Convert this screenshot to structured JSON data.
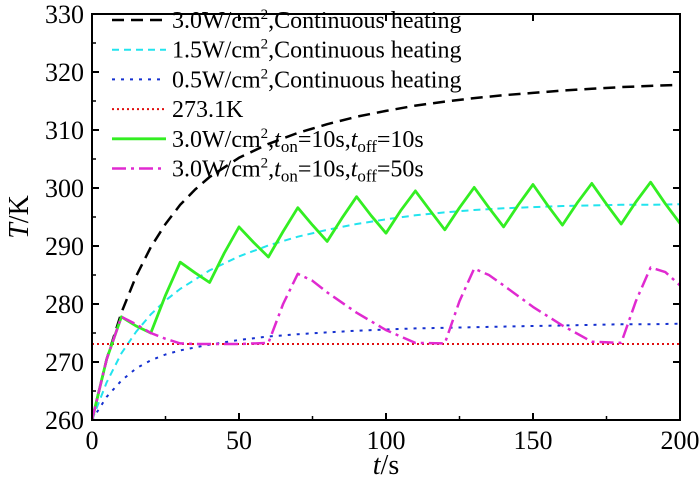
{
  "chart_data": {
    "type": "line",
    "title": "",
    "xlabel": {
      "var": "t",
      "unit": "/s"
    },
    "ylabel": {
      "var": "T",
      "unit": "/K"
    },
    "xlim": [
      0,
      200
    ],
    "ylim": [
      260,
      330
    ],
    "xticks": [
      0,
      50,
      100,
      150,
      200
    ],
    "yticks": [
      260,
      270,
      280,
      290,
      300,
      310,
      320,
      330
    ],
    "legend_position": "top-left",
    "series": [
      {
        "name": "3.0W/cm²,Continuous heating",
        "legend": {
          "parts": [
            {
              "t": "3.0W/cm"
            },
            {
              "t": "2",
              "s": "sup"
            },
            {
              "t": ",Continuous heating"
            }
          ]
        },
        "color": "#000000",
        "dash": "12,7",
        "width": 2.5,
        "x": [
          0,
          5,
          10,
          15,
          20,
          25,
          30,
          35,
          40,
          50,
          60,
          70,
          80,
          90,
          100,
          110,
          120,
          130,
          140,
          150,
          160,
          170,
          180,
          190,
          200
        ],
        "y": [
          260,
          270.5,
          278.5,
          284.8,
          289.8,
          293.8,
          297.1,
          299.7,
          301.9,
          305.2,
          307.6,
          309.5,
          311,
          312.3,
          313.3,
          314.2,
          314.9,
          315.5,
          316,
          316.4,
          316.8,
          317.1,
          317.4,
          317.6,
          317.8
        ]
      },
      {
        "name": "1.5W/cm²,Continuous heating",
        "legend": {
          "parts": [
            {
              "t": "1.5W/cm"
            },
            {
              "t": "2",
              "s": "sup"
            },
            {
              "t": ",Continuous heating"
            }
          ]
        },
        "color": "#22e4ee",
        "dash": "7,5",
        "width": 2,
        "x": [
          0,
          5,
          10,
          15,
          20,
          25,
          30,
          40,
          50,
          60,
          70,
          80,
          90,
          100,
          110,
          120,
          130,
          140,
          150,
          160,
          170,
          180,
          190,
          200
        ],
        "y": [
          260,
          266.5,
          271.5,
          275.2,
          278.2,
          280.6,
          282.6,
          285.8,
          288.2,
          290.1,
          291.6,
          292.8,
          293.8,
          294.6,
          295.3,
          295.8,
          296.2,
          296.5,
          296.7,
          296.9,
          297,
          297.1,
          297.1,
          297.2
        ]
      },
      {
        "name": "0.5W/cm²,Continuous heating",
        "legend": {
          "parts": [
            {
              "t": "0.5W/cm"
            },
            {
              "t": "2",
              "s": "sup"
            },
            {
              "t": ",Continuous heating"
            }
          ]
        },
        "color": "#1530d0",
        "dash": "3,6",
        "width": 2,
        "x": [
          0,
          5,
          10,
          15,
          20,
          25,
          30,
          40,
          50,
          60,
          70,
          80,
          90,
          100,
          110,
          120,
          130,
          140,
          150,
          160,
          170,
          180,
          190,
          200
        ],
        "y": [
          260,
          264,
          266.8,
          268.9,
          270.3,
          271.3,
          272,
          273,
          273.8,
          274.4,
          274.8,
          275.1,
          275.4,
          275.6,
          275.8,
          275.9,
          276,
          276.1,
          276.2,
          276.3,
          276.4,
          276.5,
          276.5,
          276.6
        ]
      },
      {
        "name": "273.1K",
        "legend": {
          "parts": [
            {
              "t": "273.1K"
            }
          ]
        },
        "color": "#e01010",
        "dash": "2,3",
        "width": 2,
        "x": [
          0,
          200
        ],
        "y": [
          273.1,
          273.1
        ]
      },
      {
        "name": "3.0W/cm²,ton=10s,toff=10s",
        "legend": {
          "parts": [
            {
              "t": "3.0W/cm"
            },
            {
              "t": "2",
              "s": "sup"
            },
            {
              "t": ","
            },
            {
              "t": "t",
              "i": true
            },
            {
              "t": "on",
              "s": "sub"
            },
            {
              "t": "=10s,"
            },
            {
              "t": "t",
              "i": true
            },
            {
              "t": "off",
              "s": "sub"
            },
            {
              "t": "=10s"
            }
          ]
        },
        "color": "#33ee22",
        "dash": "",
        "width": 2.8,
        "x": [
          0,
          5,
          10,
          15,
          20,
          25,
          30,
          35,
          40,
          45,
          50,
          55,
          60,
          65,
          70,
          75,
          80,
          85,
          90,
          95,
          100,
          105,
          110,
          115,
          120,
          125,
          130,
          135,
          140,
          145,
          150,
          155,
          160,
          165,
          170,
          175,
          180,
          185,
          190,
          195,
          200
        ],
        "y": [
          260,
          270.5,
          277.8,
          276.2,
          275,
          281.5,
          287.2,
          285.4,
          283.7,
          288.8,
          293.3,
          290.6,
          288.1,
          292.5,
          296.6,
          293.6,
          290.8,
          294.8,
          298.5,
          295.2,
          292.2,
          296.1,
          299.5,
          296.1,
          292.8,
          296.6,
          300.1,
          296.6,
          293.3,
          297.1,
          300.6,
          297,
          293.6,
          297.4,
          300.8,
          297.2,
          293.8,
          297.6,
          301,
          297.3,
          293.9
        ]
      },
      {
        "name": "3.0W/cm²,ton=10s,toff=50s",
        "legend": {
          "parts": [
            {
              "t": "3.0W/cm"
            },
            {
              "t": "2",
              "s": "sup"
            },
            {
              "t": ","
            },
            {
              "t": "t",
              "i": true
            },
            {
              "t": "on",
              "s": "sub"
            },
            {
              "t": "=10s,"
            },
            {
              "t": "t",
              "i": true
            },
            {
              "t": "off",
              "s": "sub"
            },
            {
              "t": "=50s"
            }
          ]
        },
        "color": "#e02ad0",
        "dash": "14,5,3,5",
        "width": 2.5,
        "x": [
          0,
          5,
          10,
          15,
          20,
          25,
          30,
          35,
          40,
          50,
          60,
          65,
          70,
          75,
          80,
          90,
          100,
          110,
          120,
          125,
          130,
          135,
          140,
          150,
          160,
          170,
          180,
          185,
          190,
          195,
          200
        ],
        "y": [
          260,
          270.5,
          277.8,
          276.5,
          275,
          274,
          273.2,
          273.1,
          273.1,
          273.1,
          273.3,
          280,
          285.2,
          284,
          282,
          278.5,
          275.5,
          273.3,
          273.2,
          280.5,
          286.1,
          285,
          283.2,
          279.5,
          276.3,
          273.5,
          273.3,
          280.5,
          286.3,
          285.5,
          283.2
        ]
      }
    ]
  }
}
